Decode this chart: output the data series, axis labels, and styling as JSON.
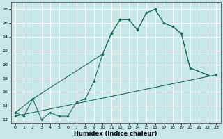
{
  "title": "",
  "xlabel": "Humidex (Indice chaleur)",
  "background_color": "#c8e8e8",
  "grid_color": "#ffffff",
  "line_color": "#1a6b5a",
  "xlim": [
    -0.5,
    23.5
  ],
  "ylim": [
    11.5,
    29
  ],
  "xticks": [
    0,
    1,
    2,
    3,
    4,
    5,
    6,
    7,
    8,
    9,
    10,
    11,
    12,
    13,
    14,
    15,
    16,
    17,
    18,
    19,
    20,
    21,
    22,
    23
  ],
  "yticks": [
    12,
    14,
    16,
    18,
    20,
    22,
    24,
    26,
    28
  ],
  "series1_x": [
    0,
    1,
    2,
    3,
    4,
    5,
    6,
    7,
    8,
    9,
    10,
    11,
    12,
    13,
    14,
    15,
    16,
    17,
    18,
    19,
    20,
    22
  ],
  "series1_y": [
    13.0,
    12.5,
    15.0,
    12.0,
    13.0,
    12.5,
    12.5,
    14.5,
    15.0,
    17.5,
    21.5,
    24.5,
    26.5,
    26.5,
    25.0,
    27.5,
    28.0,
    26.0,
    25.5,
    24.5,
    19.5,
    18.5
  ],
  "series2_x": [
    0,
    2,
    10,
    11,
    12,
    13,
    14,
    15,
    16,
    17,
    18,
    19,
    20,
    22
  ],
  "series2_y": [
    13.0,
    15.0,
    21.5,
    24.5,
    26.5,
    26.5,
    25.0,
    27.5,
    28.0,
    26.0,
    25.5,
    24.5,
    19.5,
    18.5
  ],
  "series3_x": [
    0,
    23
  ],
  "series3_y": [
    12.5,
    18.5
  ]
}
